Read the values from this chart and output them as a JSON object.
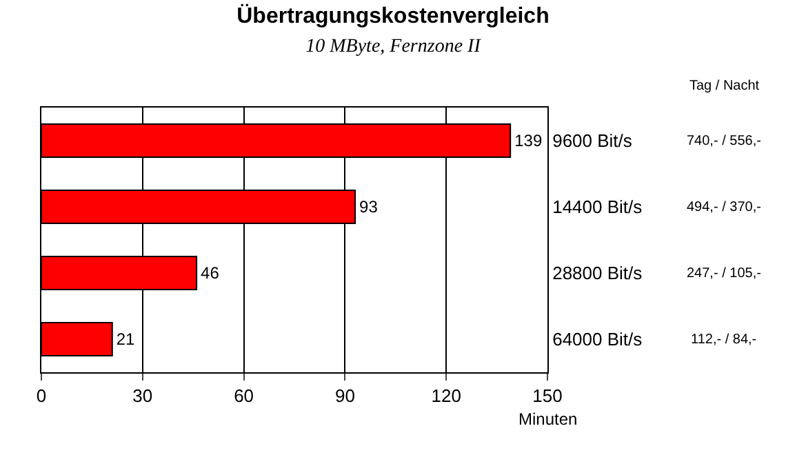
{
  "chart_data": {
    "type": "bar",
    "orientation": "horizontal",
    "title": "Übertragungskostenvergleich",
    "subtitle": "10 MByte, Fernzone II",
    "xlabel": "Minuten",
    "categories": [
      "9600 Bit/s",
      "14400 Bit/s",
      "28800 Bit/s",
      "64000 Bit/s"
    ],
    "values": [
      139,
      93,
      46,
      21
    ],
    "color": "#ff0000",
    "xlim": [
      0,
      150
    ],
    "xticks": [
      0,
      30,
      60,
      90,
      120,
      150
    ],
    "grid": "x",
    "data_labels": true,
    "legend": false,
    "annotations": [
      "Tag / Nacht",
      "740,- / 556,-",
      "494,- / 370,-",
      "247,- / 105,-",
      "112,- / 84,-"
    ]
  }
}
